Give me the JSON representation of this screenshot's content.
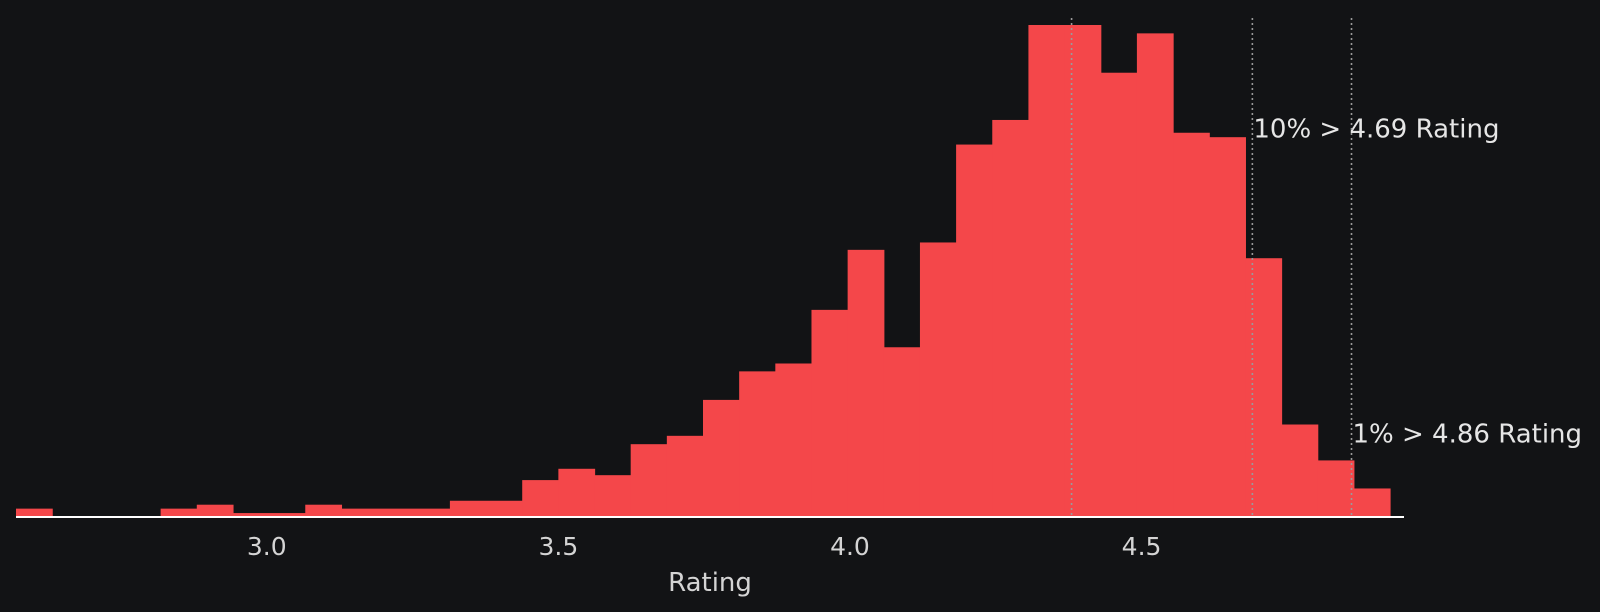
{
  "chart_data": {
    "type": "histogram",
    "title": "",
    "xlabel": "Rating",
    "ylabel": "",
    "bar_color": "#f4474a",
    "background": "#121315",
    "axis_color": "#ffffff",
    "grid": false,
    "y_axis_visible": false,
    "xlim": [
      2.57,
      4.95
    ],
    "x_ticks": [
      {
        "value": 3.0,
        "label": "3.0"
      },
      {
        "value": 3.5,
        "label": "3.5"
      },
      {
        "value": 4.0,
        "label": "4.0"
      },
      {
        "value": 4.5,
        "label": "4.5"
      }
    ],
    "bins": [
      {
        "start": 2.57,
        "end": 2.632,
        "height": 0.017
      },
      {
        "start": 2.632,
        "end": 2.818,
        "height": 0.0
      },
      {
        "start": 2.818,
        "end": 2.88,
        "height": 0.017
      },
      {
        "start": 2.88,
        "end": 2.942,
        "height": 0.025
      },
      {
        "start": 2.942,
        "end": 3.066,
        "height": 0.008
      },
      {
        "start": 3.066,
        "end": 3.128,
        "height": 0.025
      },
      {
        "start": 3.128,
        "end": 3.314,
        "height": 0.017
      },
      {
        "start": 3.314,
        "end": 3.438,
        "height": 0.033
      },
      {
        "start": 3.438,
        "end": 3.5,
        "height": 0.075
      },
      {
        "start": 3.5,
        "end": 3.562,
        "height": 0.098
      },
      {
        "start": 3.562,
        "end": 3.624,
        "height": 0.085
      },
      {
        "start": 3.624,
        "end": 3.686,
        "height": 0.148
      },
      {
        "start": 3.686,
        "end": 3.748,
        "height": 0.165
      },
      {
        "start": 3.748,
        "end": 3.81,
        "height": 0.238
      },
      {
        "start": 3.81,
        "end": 3.872,
        "height": 0.296
      },
      {
        "start": 3.872,
        "end": 3.934,
        "height": 0.312
      },
      {
        "start": 3.934,
        "end": 3.996,
        "height": 0.421
      },
      {
        "start": 3.996,
        "end": 4.058,
        "height": 0.543
      },
      {
        "start": 4.058,
        "end": 4.12,
        "height": 0.345
      },
      {
        "start": 4.12,
        "end": 4.182,
        "height": 0.558
      },
      {
        "start": 4.182,
        "end": 4.244,
        "height": 0.757
      },
      {
        "start": 4.244,
        "end": 4.306,
        "height": 0.807
      },
      {
        "start": 4.306,
        "end": 4.368,
        "height": 1.0
      },
      {
        "start": 4.368,
        "end": 4.43,
        "height": 1.0
      },
      {
        "start": 4.43,
        "end": 4.492,
        "height": 0.903
      },
      {
        "start": 4.492,
        "end": 4.554,
        "height": 0.983
      },
      {
        "start": 4.554,
        "end": 4.616,
        "height": 0.781
      },
      {
        "start": 4.616,
        "end": 4.678,
        "height": 0.772
      },
      {
        "start": 4.678,
        "end": 4.74,
        "height": 0.526
      },
      {
        "start": 4.74,
        "end": 4.802,
        "height": 0.188
      },
      {
        "start": 4.802,
        "end": 4.864,
        "height": 0.115
      },
      {
        "start": 4.864,
        "end": 4.926,
        "height": 0.058
      }
    ],
    "reference_lines": [
      {
        "x": 4.38,
        "label": "",
        "color": "#9a9a9a"
      },
      {
        "x": 4.69,
        "label": "10% > 4.69 Rating",
        "label_height": 0.79,
        "color": "#9a9a9a"
      },
      {
        "x": 4.86,
        "label": "1% > 4.86 Rating",
        "label_height": 0.17,
        "color": "#9a9a9a"
      }
    ]
  }
}
